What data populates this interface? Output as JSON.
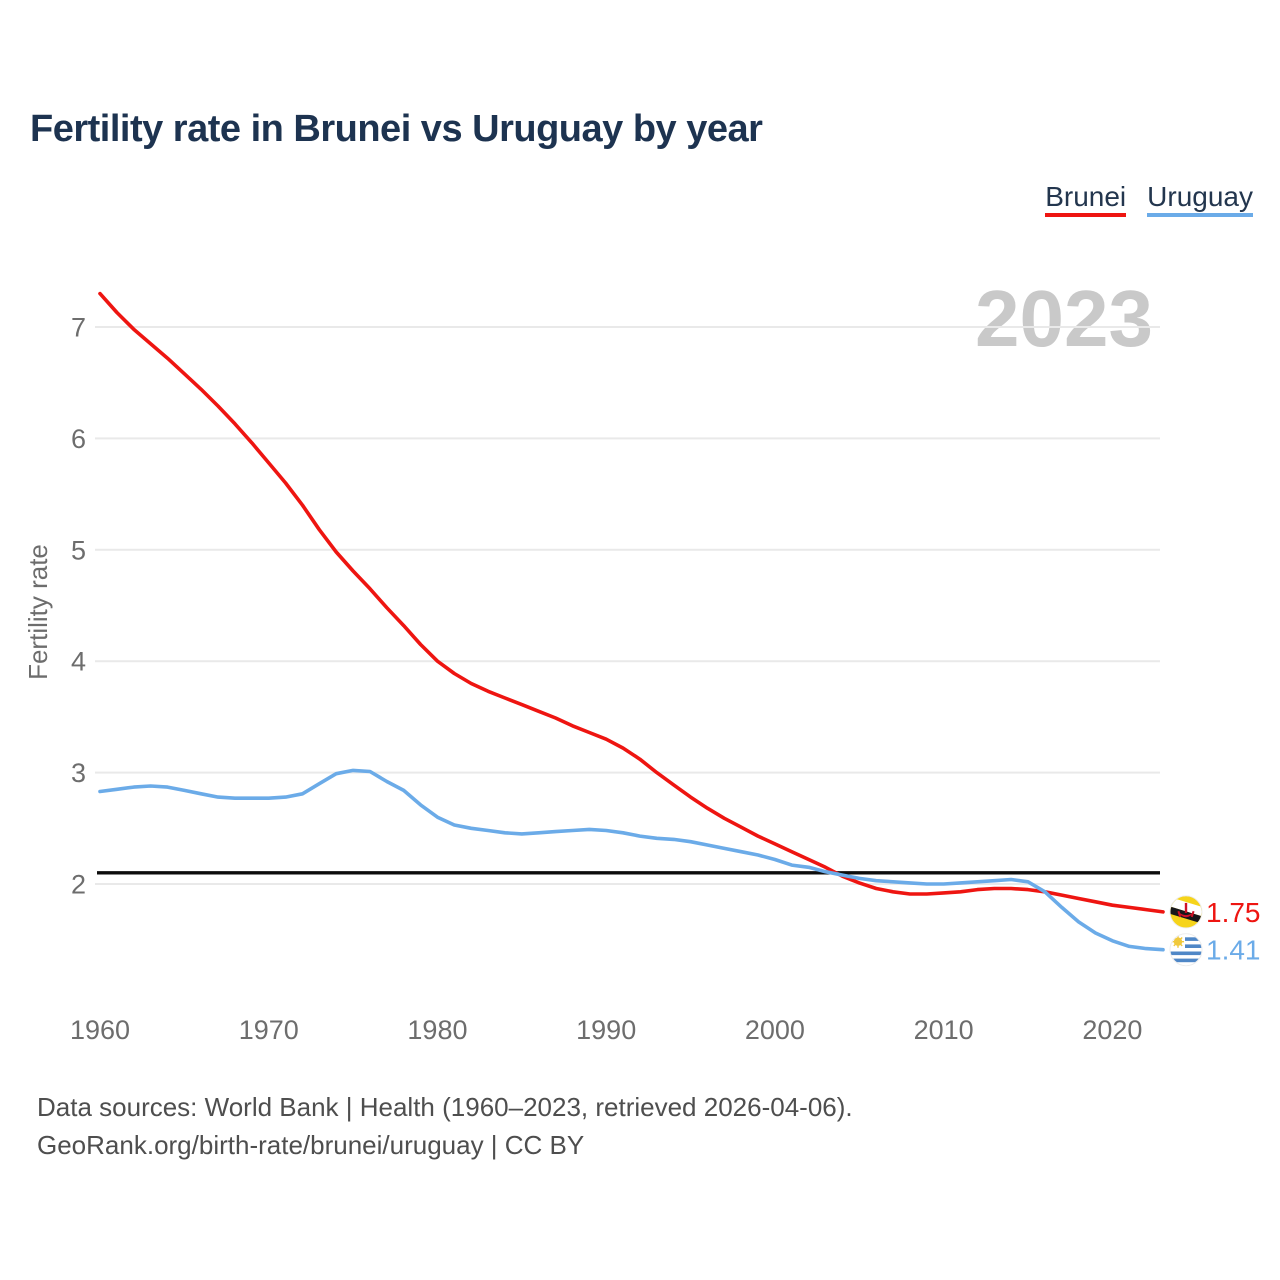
{
  "title": "Fertility rate in Brunei vs Uruguay by year",
  "watermark_year": "2023",
  "legend": [
    {
      "label": "Brunei",
      "color": "#ee1511"
    },
    {
      "label": "Uruguay",
      "color": "#6babe8"
    }
  ],
  "y_axis": {
    "label": "Fertility rate",
    "ticks": [
      2,
      3,
      4,
      5,
      6,
      7
    ]
  },
  "x_axis": {
    "ticks": [
      1960,
      1970,
      1980,
      1990,
      2000,
      2010,
      2020
    ]
  },
  "end_labels": [
    {
      "series": "Brunei",
      "value": "1.75"
    },
    {
      "series": "Uruguay",
      "value": "1.41"
    }
  ],
  "footer": {
    "line1": "Data sources: World Bank | Health (1960–2023, retrieved 2026-04-06).",
    "line2": "GeoRank.org/birth-rate/brunei/uruguay | CC BY"
  },
  "colors": {
    "brunei_line": "#ee1511",
    "uruguay_line": "#6babe8",
    "gridline": "#e9e9e9",
    "reference_line": "#0d0d0d",
    "axis_text": "#6d6d6d",
    "watermark": "#c9c9c9"
  },
  "chart_data": {
    "type": "line",
    "title": "Fertility rate in Brunei vs Uruguay by year",
    "xlabel": "",
    "ylabel": "Fertility rate",
    "xlim": [
      1960,
      2023
    ],
    "ylim": [
      1.3,
      7.45
    ],
    "grid": "horizontal",
    "legend_position": "top-right",
    "reference_line": 2.1,
    "x": [
      1960,
      1961,
      1962,
      1963,
      1964,
      1965,
      1966,
      1967,
      1968,
      1969,
      1970,
      1971,
      1972,
      1973,
      1974,
      1975,
      1976,
      1977,
      1978,
      1979,
      1980,
      1981,
      1982,
      1983,
      1984,
      1985,
      1986,
      1987,
      1988,
      1989,
      1990,
      1991,
      1992,
      1993,
      1994,
      1995,
      1996,
      1997,
      1998,
      1999,
      2000,
      2001,
      2002,
      2003,
      2004,
      2005,
      2006,
      2007,
      2008,
      2009,
      2010,
      2011,
      2012,
      2013,
      2014,
      2015,
      2016,
      2017,
      2018,
      2019,
      2020,
      2021,
      2022,
      2023
    ],
    "series": [
      {
        "name": "Brunei",
        "color": "#ee1511",
        "values": [
          7.3,
          7.13,
          6.98,
          6.85,
          6.72,
          6.58,
          6.44,
          6.29,
          6.13,
          5.96,
          5.78,
          5.6,
          5.4,
          5.18,
          4.98,
          4.81,
          4.65,
          4.48,
          4.32,
          4.15,
          4.0,
          3.89,
          3.8,
          3.73,
          3.67,
          3.61,
          3.55,
          3.49,
          3.42,
          3.36,
          3.3,
          3.22,
          3.12,
          3.0,
          2.89,
          2.78,
          2.68,
          2.59,
          2.51,
          2.43,
          2.36,
          2.29,
          2.22,
          2.15,
          2.07,
          2.01,
          1.96,
          1.93,
          1.91,
          1.91,
          1.92,
          1.93,
          1.95,
          1.96,
          1.96,
          1.95,
          1.93,
          1.9,
          1.87,
          1.84,
          1.81,
          1.79,
          1.77,
          1.75
        ]
      },
      {
        "name": "Uruguay",
        "color": "#6babe8",
        "values": [
          2.83,
          2.85,
          2.87,
          2.88,
          2.87,
          2.84,
          2.81,
          2.78,
          2.77,
          2.77,
          2.77,
          2.78,
          2.81,
          2.9,
          2.99,
          3.02,
          3.01,
          2.92,
          2.84,
          2.71,
          2.6,
          2.53,
          2.5,
          2.48,
          2.46,
          2.45,
          2.46,
          2.47,
          2.48,
          2.49,
          2.48,
          2.46,
          2.43,
          2.41,
          2.4,
          2.38,
          2.35,
          2.32,
          2.29,
          2.26,
          2.22,
          2.17,
          2.15,
          2.11,
          2.08,
          2.05,
          2.03,
          2.02,
          2.01,
          2.0,
          2.0,
          2.01,
          2.02,
          2.03,
          2.04,
          2.02,
          1.93,
          1.79,
          1.66,
          1.56,
          1.49,
          1.44,
          1.42,
          1.41
        ]
      }
    ]
  }
}
